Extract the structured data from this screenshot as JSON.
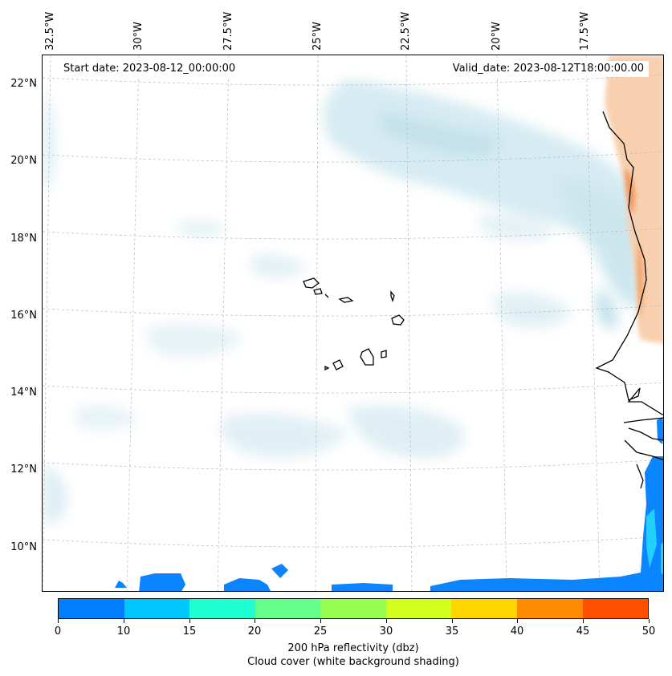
{
  "header": {
    "start_date": "Start date: 2023-08-12_00:00:00",
    "valid_date": "Valid_date: 2023-08-12T18:00:00.00"
  },
  "axes": {
    "longitude_labels": [
      "32.5°W",
      "30°W",
      "27.5°W",
      "25°W",
      "22.5°W",
      "20°W",
      "17.5°W"
    ],
    "latitude_labels": [
      "22°N",
      "20°N",
      "18°N",
      "16°N",
      "14°N",
      "12°N",
      "10°N"
    ]
  },
  "colorbar": {
    "ticks": [
      "0",
      "10",
      "15",
      "20",
      "25",
      "30",
      "35",
      "40",
      "45",
      "50"
    ],
    "colors": [
      "#0080ff",
      "#00c8ff",
      "#1effd2",
      "#64ff8c",
      "#96ff50",
      "#d2ff1e",
      "#ffd700",
      "#ff8c00",
      "#ff5000"
    ],
    "label": "200 hPa reflectivity (dbz)",
    "sublabel": "Cloud cover (white background shading)"
  },
  "colors": {
    "cloud_shading": "#cde6ee",
    "warm_shading": "#f6c9a4",
    "reflectivity_low": "#0080ff",
    "reflectivity_mid": "#00c8ff",
    "coastline": "#000000",
    "gridline": "#b0b0b0"
  }
}
